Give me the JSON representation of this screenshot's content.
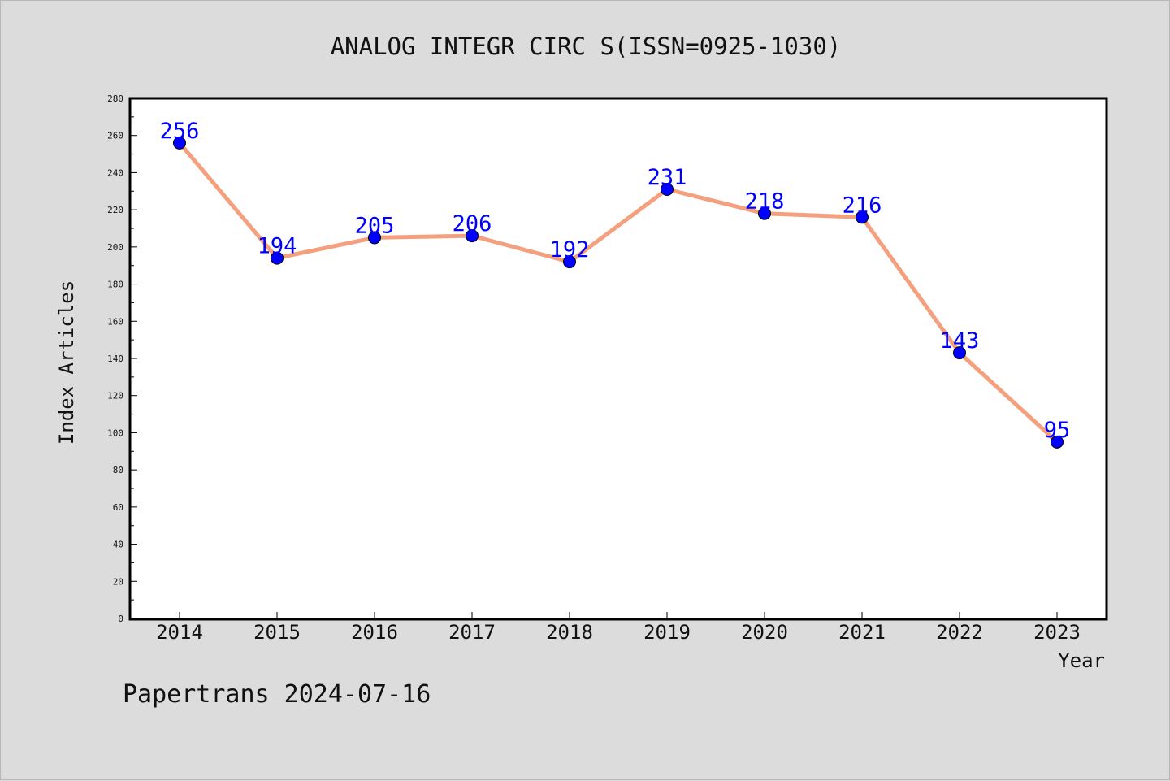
{
  "chart_data": {
    "type": "line",
    "title": "ANALOG INTEGR CIRC S(ISSN=0925-1030)",
    "xlabel": "Year",
    "ylabel": "Index Articles",
    "categories": [
      "2014",
      "2015",
      "2016",
      "2017",
      "2018",
      "2019",
      "2020",
      "2021",
      "2022",
      "2023"
    ],
    "values": [
      256,
      194,
      205,
      206,
      192,
      231,
      218,
      216,
      143,
      95
    ],
    "ylim": [
      0,
      280
    ],
    "yticks": [
      0,
      20,
      40,
      60,
      80,
      100,
      120,
      140,
      160,
      180,
      200,
      220,
      240,
      260,
      280
    ],
    "grid": false,
    "colors": {
      "line": "#f4a07f",
      "marker": "#0000ff",
      "label": "#0000ff",
      "background": "#dcdcdc",
      "plot": "#ffffff"
    }
  },
  "footer": "Papertrans 2024-07-16"
}
